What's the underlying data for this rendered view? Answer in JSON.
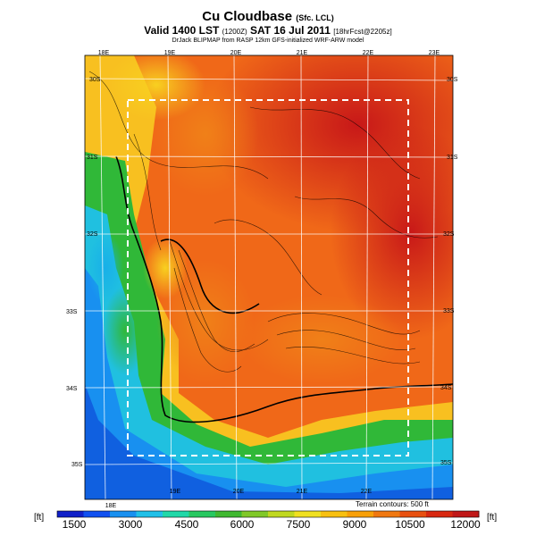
{
  "header": {
    "title": "Cu Cloudbase",
    "title_suffix": "(Sfc. LCL)",
    "valid": "Valid 1400 LST",
    "valid_utc": "(1200Z)",
    "date": "SAT 16 Jul 2011",
    "forecast": "[18hrFcst@2205z]",
    "credit": "DrJack BLIPMAP from RASP 12km GFS-initialized WRF-ARW model"
  },
  "map": {
    "lon_labels_top": [
      "18E",
      "19E",
      "20E",
      "21E",
      "22E",
      "23E"
    ],
    "lon_labels_bottom": [
      "18E",
      "19E",
      "20E",
      "21E",
      "22E"
    ],
    "lat_labels_left": [
      "30S",
      "31S",
      "32S",
      "33S",
      "34S",
      "35S"
    ],
    "lat_labels_right": [
      "30S",
      "31S",
      "32S",
      "33S",
      "34S",
      "35S"
    ],
    "terrain_note": "Terrain contours: 500 ft"
  },
  "colorbar": {
    "unit": "[ft]",
    "labels": [
      "1500",
      "3000",
      "4500",
      "6000",
      "7500",
      "9000",
      "10500",
      "12000"
    ],
    "colors": [
      "#1020c8",
      "#1050f0",
      "#1890f0",
      "#20c0e8",
      "#20d8a8",
      "#28c860",
      "#40b830",
      "#80c828",
      "#c0d820",
      "#f0e020",
      "#f8c010",
      "#f8a008",
      "#f07810",
      "#e85010",
      "#d82810",
      "#c01818"
    ]
  }
}
